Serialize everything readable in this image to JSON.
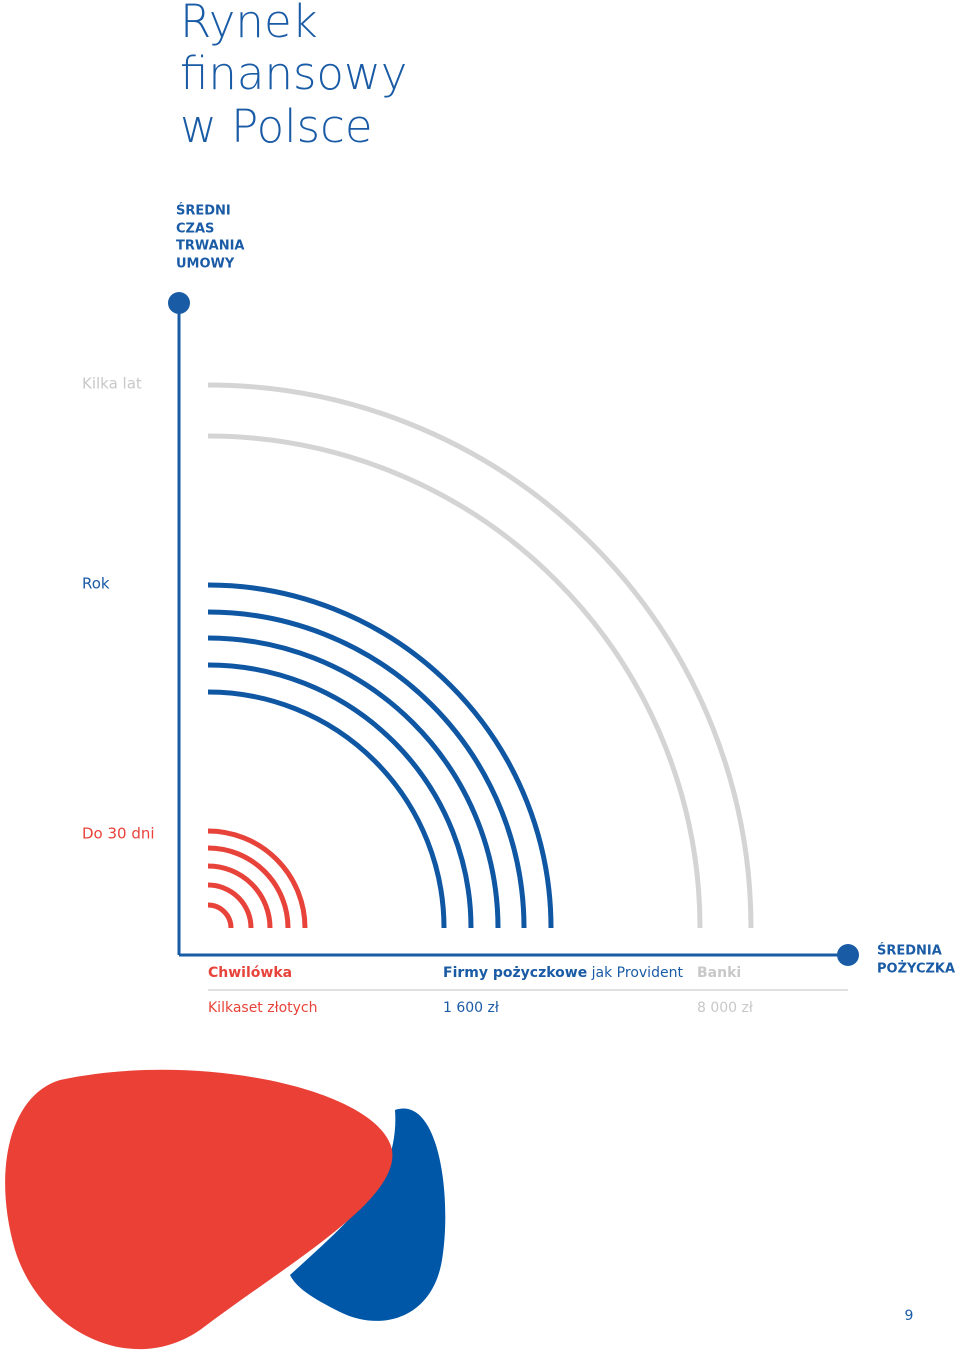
{
  "title": [
    "Rynek",
    "finansowy",
    "w Polsce"
  ],
  "y_axis_label": [
    "ŚREDNI",
    "CZAS",
    "TRWANIA",
    "UMOWY"
  ],
  "levels": [
    "Kilka lat",
    "Rok",
    "Do 30 dni"
  ],
  "x_axis_label": [
    "ŚREDNIA",
    "POŻYCZKA"
  ],
  "products": [
    {
      "name": "Chwilówka",
      "amount": "Kilkaset złotych"
    },
    {
      "name": "Firmy pożyczkowe",
      "name_suffix": "jak Provident",
      "amount": "1 600 zł"
    },
    {
      "name": "Banki",
      "amount": "8 000 zł"
    }
  ],
  "page_number": "9"
}
